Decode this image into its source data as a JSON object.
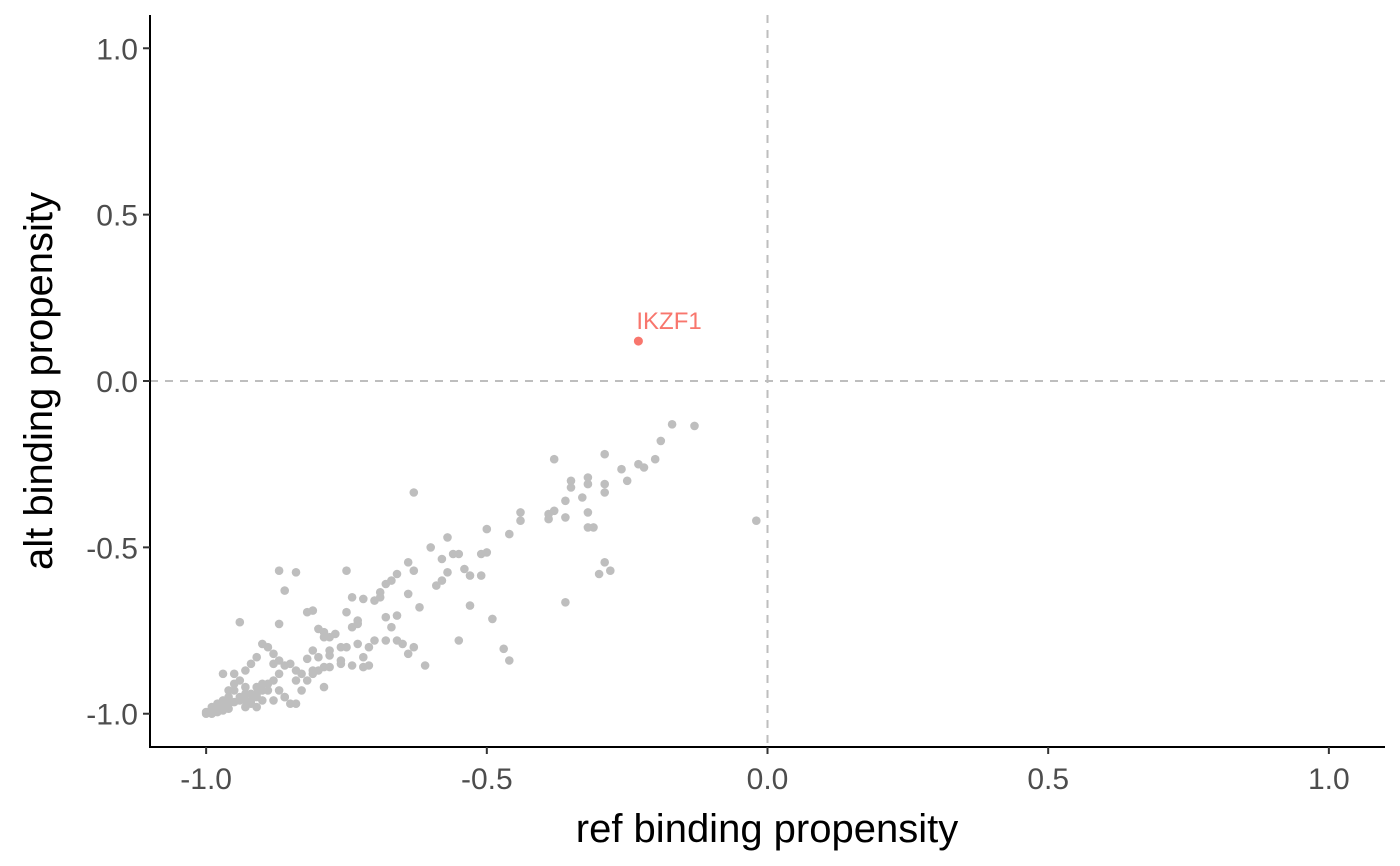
{
  "chart_data": {
    "type": "scatter",
    "title": "",
    "xlabel": "ref binding propensity",
    "ylabel": "alt binding propensity",
    "xlim": [
      -1.1,
      1.1
    ],
    "ylim": [
      -1.1,
      1.1
    ],
    "grid": false,
    "reference_lines": {
      "x": 0.0,
      "y": 0.0,
      "style": "dashed",
      "color": "#bebebe"
    },
    "x_ticks": [
      {
        "value": -1.0,
        "label": "-1.0"
      },
      {
        "value": -0.5,
        "label": "-0.5"
      },
      {
        "value": 0.0,
        "label": "0.0"
      },
      {
        "value": 0.5,
        "label": "0.5"
      },
      {
        "value": 1.0,
        "label": "1.0"
      }
    ],
    "y_ticks": [
      {
        "value": -1.0,
        "label": "-1.0"
      },
      {
        "value": -0.5,
        "label": "-0.5"
      },
      {
        "value": 0.0,
        "label": "0.0"
      },
      {
        "value": 0.5,
        "label": "0.5"
      },
      {
        "value": 1.0,
        "label": "1.0"
      }
    ],
    "highlighted": [
      {
        "label": "IKZF1",
        "x": -0.23,
        "y": 0.12,
        "color": "#f8766d"
      }
    ],
    "background_color": "#bebebe",
    "points": [
      [
        -0.17,
        -0.13
      ],
      [
        -0.13,
        -0.135
      ],
      [
        -0.19,
        -0.18
      ],
      [
        -0.2,
        -0.235
      ],
      [
        -0.22,
        -0.26
      ],
      [
        -0.23,
        -0.25
      ],
      [
        -0.26,
        -0.265
      ],
      [
        -0.25,
        -0.3
      ],
      [
        -0.29,
        -0.22
      ],
      [
        -0.32,
        -0.29
      ],
      [
        -0.32,
        -0.31
      ],
      [
        -0.29,
        -0.31
      ],
      [
        -0.29,
        -0.335
      ],
      [
        -0.38,
        -0.235
      ],
      [
        -0.35,
        -0.3
      ],
      [
        -0.35,
        -0.32
      ],
      [
        -0.33,
        -0.35
      ],
      [
        -0.36,
        -0.36
      ],
      [
        -0.38,
        -0.39
      ],
      [
        -0.39,
        -0.4
      ],
      [
        -0.36,
        -0.41
      ],
      [
        -0.39,
        -0.415
      ],
      [
        -0.44,
        -0.395
      ],
      [
        -0.44,
        -0.42
      ],
      [
        -0.32,
        -0.395
      ],
      [
        -0.32,
        -0.44
      ],
      [
        -0.31,
        -0.44
      ],
      [
        -0.02,
        -0.42
      ],
      [
        -0.46,
        -0.46
      ],
      [
        -0.5,
        -0.445
      ],
      [
        -0.63,
        -0.335
      ],
      [
        -0.29,
        -0.545
      ],
      [
        -0.28,
        -0.57
      ],
      [
        -0.3,
        -0.58
      ],
      [
        -0.36,
        -0.665
      ],
      [
        -0.5,
        -0.515
      ],
      [
        -0.51,
        -0.52
      ],
      [
        -0.55,
        -0.52
      ],
      [
        -0.56,
        -0.52
      ],
      [
        -0.57,
        -0.47
      ],
      [
        -0.58,
        -0.535
      ],
      [
        -0.6,
        -0.5
      ],
      [
        -0.54,
        -0.565
      ],
      [
        -0.57,
        -0.575
      ],
      [
        -0.58,
        -0.6
      ],
      [
        -0.59,
        -0.615
      ],
      [
        -0.53,
        -0.585
      ],
      [
        -0.51,
        -0.585
      ],
      [
        -0.64,
        -0.545
      ],
      [
        -0.63,
        -0.57
      ],
      [
        -0.66,
        -0.58
      ],
      [
        -0.67,
        -0.6
      ],
      [
        -0.68,
        -0.61
      ],
      [
        -0.69,
        -0.635
      ],
      [
        -0.69,
        -0.65
      ],
      [
        -0.7,
        -0.66
      ],
      [
        -0.72,
        -0.655
      ],
      [
        -0.74,
        -0.65
      ],
      [
        -0.75,
        -0.57
      ],
      [
        -0.64,
        -0.64
      ],
      [
        -0.62,
        -0.68
      ],
      [
        -0.53,
        -0.675
      ],
      [
        -0.49,
        -0.715
      ],
      [
        -0.55,
        -0.78
      ],
      [
        -0.47,
        -0.805
      ],
      [
        -0.46,
        -0.84
      ],
      [
        -0.61,
        -0.855
      ],
      [
        -0.66,
        -0.705
      ],
      [
        -0.68,
        -0.71
      ],
      [
        -0.67,
        -0.74
      ],
      [
        -0.7,
        -0.78
      ],
      [
        -0.66,
        -0.78
      ],
      [
        -0.73,
        -0.72
      ],
      [
        -0.73,
        -0.73
      ],
      [
        -0.74,
        -0.74
      ],
      [
        -0.75,
        -0.695
      ],
      [
        -0.76,
        -0.8
      ],
      [
        -0.76,
        -0.84
      ],
      [
        -0.71,
        -0.855
      ],
      [
        -0.72,
        -0.83
      ],
      [
        -0.74,
        -0.855
      ],
      [
        -0.78,
        -0.77
      ],
      [
        -0.79,
        -0.755
      ],
      [
        -0.8,
        -0.745
      ],
      [
        -0.81,
        -0.69
      ],
      [
        -0.82,
        -0.695
      ],
      [
        -0.84,
        -0.575
      ],
      [
        -0.87,
        -0.57
      ],
      [
        -0.87,
        -0.73
      ],
      [
        -0.86,
        -0.63
      ],
      [
        -0.94,
        -0.725
      ],
      [
        -0.79,
        -0.77
      ],
      [
        -0.78,
        -0.825
      ],
      [
        -0.8,
        -0.83
      ],
      [
        -0.81,
        -0.81
      ],
      [
        -0.82,
        -0.835
      ],
      [
        -0.78,
        -0.86
      ],
      [
        -0.8,
        -0.87
      ],
      [
        -0.79,
        -0.92
      ],
      [
        -0.81,
        -0.88
      ],
      [
        -0.83,
        -0.88
      ],
      [
        -0.84,
        -0.87
      ],
      [
        -0.85,
        -0.85
      ],
      [
        -0.86,
        -0.855
      ],
      [
        -0.87,
        -0.84
      ],
      [
        -0.88,
        -0.82
      ],
      [
        -0.89,
        -0.8
      ],
      [
        -0.9,
        -0.79
      ],
      [
        -0.91,
        -0.83
      ],
      [
        -0.92,
        -0.85
      ],
      [
        -0.93,
        -0.87
      ],
      [
        -0.95,
        -0.88
      ],
      [
        -0.97,
        -0.88
      ],
      [
        -0.96,
        -0.93
      ],
      [
        -0.88,
        -0.85
      ],
      [
        -0.87,
        -0.88
      ],
      [
        -0.88,
        -0.9
      ],
      [
        -0.87,
        -0.93
      ],
      [
        -0.86,
        -0.95
      ],
      [
        -0.85,
        -0.97
      ],
      [
        -0.89,
        -0.91
      ],
      [
        -0.9,
        -0.93
      ],
      [
        -0.91,
        -0.95
      ],
      [
        -0.92,
        -0.97
      ],
      [
        -0.93,
        -0.98
      ],
      [
        -0.94,
        -0.96
      ],
      [
        -0.93,
        -0.94
      ],
      [
        -0.93,
        -0.92
      ],
      [
        -0.94,
        -0.9
      ],
      [
        -0.95,
        -0.91
      ],
      [
        -0.95,
        -0.93
      ],
      [
        -0.96,
        -0.95
      ],
      [
        -0.97,
        -0.96
      ],
      [
        -0.98,
        -0.97
      ],
      [
        -0.99,
        -0.98
      ],
      [
        -1.0,
        -0.995
      ],
      [
        -0.99,
        -0.99
      ],
      [
        -0.98,
        -0.985
      ],
      [
        -0.97,
        -0.98
      ],
      [
        -0.96,
        -0.97
      ],
      [
        -0.95,
        -0.965
      ],
      [
        -0.94,
        -0.95
      ],
      [
        -0.92,
        -0.94
      ],
      [
        -0.91,
        -0.92
      ],
      [
        -0.9,
        -0.91
      ],
      [
        -0.89,
        -0.93
      ],
      [
        -0.88,
        -0.96
      ],
      [
        -0.9,
        -0.96
      ],
      [
        -0.91,
        -0.98
      ],
      [
        -0.92,
        -0.96
      ],
      [
        -0.97,
        -0.99
      ],
      [
        -0.96,
        -0.985
      ],
      [
        -0.98,
        -0.995
      ],
      [
        -0.99,
        -1.0
      ],
      [
        -1.0,
        -1.0
      ],
      [
        -0.995,
        -0.995
      ],
      [
        -0.93,
        -0.96
      ],
      [
        -0.91,
        -0.94
      ],
      [
        -0.84,
        -0.9
      ],
      [
        -0.83,
        -0.93
      ],
      [
        -0.86,
        -0.95
      ],
      [
        -0.84,
        -0.97
      ],
      [
        -0.82,
        -0.9
      ],
      [
        -0.81,
        -0.87
      ],
      [
        -0.79,
        -0.86
      ],
      [
        -0.76,
        -0.85
      ],
      [
        -0.73,
        -0.79
      ],
      [
        -0.71,
        -0.8
      ],
      [
        -0.68,
        -0.78
      ],
      [
        -0.65,
        -0.79
      ],
      [
        -0.64,
        -0.82
      ],
      [
        -0.63,
        -0.8
      ],
      [
        -0.78,
        -0.81
      ],
      [
        -0.77,
        -0.76
      ],
      [
        -0.75,
        -0.8
      ],
      [
        -0.72,
        -0.86
      ]
    ]
  }
}
